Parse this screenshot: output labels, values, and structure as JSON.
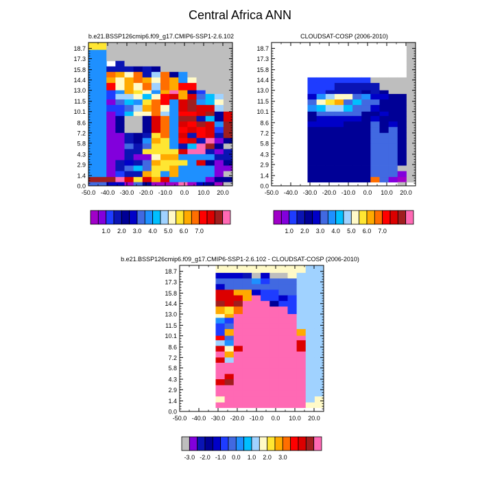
{
  "figure_title": "Central Africa ANN",
  "colors": {
    "missing": "#bebebe",
    "main_scale": [
      "#a000c8",
      "#8200dc",
      "#1e3cff",
      "#0a14b4",
      "#000096",
      "#0000c8",
      "#4169e1",
      "#1e90ff",
      "#00bfff",
      "#a0d2ff",
      "#fffac8",
      "#ffe632",
      "#ffaa00",
      "#ff6e00",
      "#ff0000",
      "#dc0000",
      "#a01e1e",
      "#ff69b4"
    ],
    "diff_scale": [
      "#bebebe",
      "#8200dc",
      "#0a14b4",
      "#000096",
      "#0000c8",
      "#1e3cff",
      "#4169e1",
      "#1e90ff",
      "#00bfff",
      "#a0d2ff",
      "#fffac8",
      "#ffe632",
      "#ffaa00",
      "#ff6e00",
      "#ff0000",
      "#dc0000",
      "#a01e1e",
      "#ff69b4"
    ]
  },
  "chart_data": [
    {
      "type": "heatmap",
      "title": "b.e21.BSSP126cmip6.f09_g17.CMIP6-SSP1-2.6.102",
      "xlabel": "",
      "ylabel": "",
      "x_ticks": [
        "-50.0",
        "-40.0",
        "-30.0",
        "-20.0",
        "-10.0",
        "0.0",
        "10.0",
        "20.0"
      ],
      "y_ticks": [
        "0.0",
        "1.4",
        "2.9",
        "4.3",
        "5.8",
        "7.2",
        "8.6",
        "10.1",
        "11.5",
        "13.0",
        "14.4",
        "15.8",
        "17.3",
        "18.7"
      ],
      "xlim": [
        -50,
        25
      ],
      "y_bin_edges": [
        0,
        0.5,
        1.2,
        2.0,
        2.75,
        3.5,
        4.3,
        5.0,
        5.75,
        6.5,
        7.2,
        8.0,
        8.75,
        9.5,
        10.1,
        11.0,
        11.75,
        12.5,
        13.0,
        14.0,
        14.75,
        15.5,
        16.25,
        17.0,
        17.75,
        18.5,
        19.5
      ],
      "x_bins": 16,
      "x_bin_width": 4.6875,
      "colorbar_labels": [
        "1.0",
        "2.0",
        "3.0",
        "4.0",
        "5.0",
        "6.0",
        "7.0"
      ],
      "colorbar_levels": 17,
      "grid": [
        "LL##############",
        "HH##############",
        "HH##############",
        "HHSD############",
        "HHDDDEDE########",
        "HHNMKNDJNEH#####",
        "HHMKMNMKNMHK####",
        "HHOKMKNJNMOO####",
        "HHCHMLKHMRMEC###",
        "HHCJJKIKOPMPGIJ#",
        "HHBGIHLNOHPQHIK#",
        "HHCCGJMNKHPQPPJ#",
        "HHBCIKKNJHOOPQEP",
        "HHBE##EPNHQQDIEP",
        "HHBE##EPNHPOQPHQ",
        "HHBE##EPNHOPOPCQ",
        "HHBBDEDLNHPDOPDQ",
        "HHBBDEHMLHOPDRBE",
        "HHBBGDGLLHDIRQE#",
        "HHBBDDLLLLPRRDBD",
        "HHBBDBBKMMHHHHDD",
        "HHBDFDGMLLLHPEBE",
        "HHBDGIGLLMHHHHBB",
        "HHBCDDMLHMHHHHB#",
        "QQQRPLPMPHHHHBEE",
        "GGFFAGEAAARAFEA#"
      ]
    },
    {
      "type": "heatmap",
      "title": "CLOUDSAT-COSP (2006-2010)",
      "xlabel": "",
      "ylabel": "",
      "x_ticks": [
        "-50.0",
        "-40.0",
        "-30.0",
        "-20.0",
        "-10.0",
        "0.0",
        "10.0",
        "20.0"
      ],
      "y_ticks": [
        "0.0",
        "1.4",
        "2.9",
        "4.3",
        "5.8",
        "7.2",
        "8.6",
        "10.1",
        "11.5",
        "13.0",
        "14.4",
        "15.8",
        "17.3",
        "18.7"
      ],
      "xlim": [
        -50,
        25
      ],
      "y_bin_edges": [
        0,
        0.5,
        1.2,
        2.0,
        2.75,
        3.5,
        4.3,
        5.0,
        5.75,
        6.5,
        7.2,
        8.0,
        8.75,
        9.5,
        10.1,
        11.0,
        11.75,
        12.5,
        13.0,
        14.0,
        14.75,
        15.5,
        16.25,
        17.0,
        17.75,
        18.5,
        19.5
      ],
      "x_bins": 15,
      "x_bin_width": 4.6875,
      "x_offset_bins": 1,
      "colorbar_labels": [
        "1.0",
        "2.0",
        "3.0",
        "4.0",
        "5.0",
        "6.0",
        "7.0"
      ],
      "colorbar_levels": 17,
      "grid": [
        "..............#",
        "..............#",
        "..............#",
        "..............#",
        "..............#",
        "..............#",
        "...CCCCCCC#####",
        "...CCCDDDDD####",
        "...CCDDDDEDE###",
        "...FHJKKGHFFEE#",
        "...GKLMGIGGEEE#",
        "...HIJJIGGFEEE#",
        "...EGGGGGEEFEE#",
        "...EFFFFFEFEEE#",
        "...FFFFEEEGEFE#",
        "...EEEEEEEGEGE#",
        "...EEEEEEEGGGE#",
        "...EEEEEEEGGGE#",
        "...EEEEEEEGGGE#",
        "...EEEEEEEGGGE#",
        "...EEEEEEEGGGE#",
        "...EEEEEEEGGGE#",
        "...EEEEEEEGGG##",
        "...EEEEEEEGGGB#",
        "...EEEEEEENGBA#",
        ".............#."
      ]
    },
    {
      "type": "heatmap",
      "title": "b.e21.BSSP126cmip6.f09_g17.CMIP6-SSP1-2.6.102 - CLOUDSAT-COSP (2006-2010)",
      "xlabel": "",
      "ylabel": "",
      "x_ticks": [
        "-50.0",
        "-40.0",
        "-30.0",
        "-20.0",
        "-10.0",
        "0.0",
        "10.0",
        "20.0"
      ],
      "y_ticks": [
        "0.0",
        "1.4",
        "2.9",
        "4.3",
        "5.8",
        "7.2",
        "8.6",
        "10.1",
        "11.5",
        "13.0",
        "14.4",
        "15.8",
        "17.3",
        "18.7"
      ],
      "xlim": [
        -50,
        25
      ],
      "y_bin_edges": [
        0,
        0.5,
        1.2,
        2.0,
        2.75,
        3.5,
        4.3,
        5.0,
        5.75,
        6.5,
        7.2,
        8.0,
        8.75,
        9.5,
        10.1,
        11.0,
        11.75,
        12.5,
        13.0,
        14.0,
        14.75,
        15.5,
        16.25,
        17.0,
        17.75,
        18.5,
        19.5
      ],
      "x_bins": 15,
      "x_bin_width": 4.6875,
      "x_offset_bins": 1,
      "colorbar_labels": [
        "-3.0",
        "-2.0",
        "-1.0",
        "0.0",
        "1.0",
        "2.0",
        "3.0"
      ],
      "colorbar_levels": 17,
      "grid": [
        "...KKKKKKKKKKJJ",
        "...EEECAEAAKJJJ",
        "...GGGGHFGGGJJJ",
        "...EGGGGGGGGJJJ",
        "...PPMMEFFGGJJJ",
        "...PPPMRFFEFJJJ",
        "...QPQRRRDFFJJJ",
        "...MLNRRRRRFJJJ",
        "...KMRRRRRRRJJJ",
        "...HFRRRRRRRJJJ",
        "...FGRRRRRRRJJJ",
        "...FMRRRRRRRMJJ",
        "...OGRRRRRRRRJJ",
        "...JHRRRRRRRPJJ",
        "...PKPRRRRRRPJJ",
        "...RMRRRRRRRRJJ",
        "...PJRRRRRRRRJJ",
        "...RRRRRRRRRRJJ",
        "...RRRRRRRRRRJJ",
        "...RPRRRRRRRRJJ",
        "...PQRRRRRRRRJJ",
        "...RRRRRRRRRRJJ",
        "...RRRRRRRRRRJJ",
        "...KRRRRRRRRRJK",
        "...RRRRRRRRRRKK",
        "..............."
      ]
    }
  ]
}
